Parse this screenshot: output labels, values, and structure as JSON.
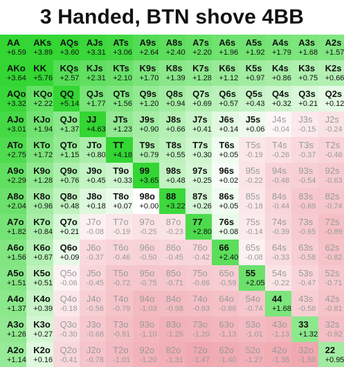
{
  "title": "3 Handed, BTN shove 4BB",
  "chart_data": {
    "type": "heatmap",
    "title": "3 Handed, BTN shove 4BB",
    "rows": [
      {
        "hands": [
          "AA",
          "AKs",
          "AQs",
          "AJs",
          "ATs",
          "A9s",
          "A8s",
          "A7s",
          "A6s",
          "A5s",
          "A4s",
          "A3s",
          "A2s"
        ],
        "values": [
          "+6.59",
          "+3.89",
          "+3.60",
          "+3.31",
          "+3.06",
          "+2.64",
          "+2.40",
          "+2.20",
          "+1.96",
          "+1.92",
          "+1.79",
          "+1.68",
          "+1.57"
        ]
      },
      {
        "hands": [
          "AKo",
          "KK",
          "KQs",
          "KJs",
          "KTs",
          "K9s",
          "K8s",
          "K7s",
          "K6s",
          "K5s",
          "K4s",
          "K3s",
          "K2s"
        ],
        "values": [
          "+3.64",
          "+5.76",
          "+2.57",
          "+2.31",
          "+2.10",
          "+1.70",
          "+1.39",
          "+1.28",
          "+1.12",
          "+0.97",
          "+0.86",
          "+0.75",
          "+0.66"
        ]
      },
      {
        "hands": [
          "AQo",
          "KQo",
          "QQ",
          "QJs",
          "QTs",
          "Q9s",
          "Q8s",
          "Q7s",
          "Q6s",
          "Q5s",
          "Q4s",
          "Q3s",
          "Q2s"
        ],
        "values": [
          "+3.32",
          "+2.22",
          "+5.14",
          "+1.77",
          "+1.56",
          "+1.20",
          "+0.94",
          "+0.69",
          "+0.57",
          "+0.43",
          "+0.32",
          "+0.21",
          "+0.12"
        ]
      },
      {
        "hands": [
          "AJo",
          "KJo",
          "QJo",
          "JJ",
          "JTs",
          "J9s",
          "J8s",
          "J7s",
          "J6s",
          "J5s",
          "J4s",
          "J3s",
          "J2s"
        ],
        "values": [
          "+3.01",
          "+1.94",
          "+1.37",
          "+4.63",
          "+1.23",
          "+0.90",
          "+0.66",
          "+0.41",
          "+0.14",
          "+0.06",
          "-0.04",
          "-0.15",
          "-0.24"
        ]
      },
      {
        "hands": [
          "ATo",
          "KTo",
          "QTo",
          "JTo",
          "TT",
          "T9s",
          "T8s",
          "T7s",
          "T6s",
          "T5s",
          "T4s",
          "T3s",
          "T2s"
        ],
        "values": [
          "+2.75",
          "+1.72",
          "+1.15",
          "+0.80",
          "+4.18",
          "+0.79",
          "+0.55",
          "+0.30",
          "+0.05",
          "-0.19",
          "-0.26",
          "-0.37",
          "-0.46"
        ]
      },
      {
        "hands": [
          "A9o",
          "K9o",
          "Q9o",
          "J9o",
          "T9o",
          "99",
          "98s",
          "97s",
          "96s",
          "95s",
          "94s",
          "93s",
          "92s"
        ],
        "values": [
          "+2.29",
          "+1.28",
          "+0.76",
          "+0.45",
          "+0.33",
          "+3.65",
          "+0.48",
          "+0.25",
          "+0.02",
          "-0.22",
          "-0.48",
          "-0.54",
          "-0.63"
        ]
      },
      {
        "hands": [
          "A8o",
          "K8o",
          "Q8o",
          "J8o",
          "T8o",
          "98o",
          "88",
          "87s",
          "86s",
          "85s",
          "84s",
          "83s",
          "82s"
        ],
        "values": [
          "+2.04",
          "+0.96",
          "+0.48",
          "+0.18",
          "+0.07",
          "+0.00",
          "+3.22",
          "+0.26",
          "+0.05",
          "-0.18",
          "-0.44",
          "-0.69",
          "-0.74"
        ]
      },
      {
        "hands": [
          "A7o",
          "K7o",
          "Q7o",
          "J7o",
          "T7o",
          "97o",
          "87o",
          "77",
          "76s",
          "75s",
          "74s",
          "73s",
          "72s"
        ],
        "values": [
          "+1.82",
          "+0.84",
          "+0.21",
          "-0.08",
          "-0.19",
          "-0.25",
          "-0.23",
          "+2.80",
          "+0.08",
          "-0.14",
          "-0.39",
          "-0.65",
          "-0.89"
        ]
      },
      {
        "hands": [
          "A6o",
          "K6o",
          "Q6o",
          "J6o",
          "T6o",
          "96o",
          "86o",
          "76o",
          "66",
          "65s",
          "64s",
          "63s",
          "62s"
        ],
        "values": [
          "+1.56",
          "+0.67",
          "+0.09",
          "-0.37",
          "-0.46",
          "-0.50",
          "-0.45",
          "-0.42",
          "+2.40",
          "-0.08",
          "-0.33",
          "-0.58",
          "-0.82"
        ]
      },
      {
        "hands": [
          "A5o",
          "K5o",
          "Q5o",
          "J5o",
          "T5o",
          "95o",
          "85o",
          "75o",
          "65o",
          "55",
          "54s",
          "53s",
          "52s"
        ],
        "values": [
          "+1.51",
          "+0.51",
          "-0.06",
          "-0.45",
          "-0.72",
          "-0.75",
          "-0.71",
          "-0.66",
          "-0.59",
          "+2.05",
          "-0.22",
          "-0.47",
          "-0.71"
        ]
      },
      {
        "hands": [
          "A4o",
          "K4o",
          "Q4o",
          "J4o",
          "T4o",
          "94o",
          "84o",
          "74o",
          "64o",
          "54o",
          "44",
          "43s",
          "42s"
        ],
        "values": [
          "+1.37",
          "+0.39",
          "-0.18",
          "-0.56",
          "-0.79",
          "-1.03",
          "-0.98",
          "-0.93",
          "-0.86",
          "-0.74",
          "+1.68",
          "-0.58",
          "-0.81"
        ]
      },
      {
        "hands": [
          "A3o",
          "K3o",
          "Q3o",
          "J3o",
          "T3o",
          "93o",
          "83o",
          "73o",
          "63o",
          "53o",
          "43o",
          "33",
          "32s"
        ],
        "values": [
          "+1.26",
          "+0.27",
          "-0.30",
          "-0.68",
          "-0.91",
          "-1.10",
          "-1.25",
          "-1.20",
          "-1.13",
          "-1.01",
          "-1.13",
          "+1.32",
          "-0.92"
        ]
      },
      {
        "hands": [
          "A2o",
          "K2o",
          "Q2o",
          "J2o",
          "T2o",
          "92o",
          "82o",
          "72o",
          "62o",
          "52o",
          "42o",
          "32o",
          "22"
        ],
        "values": [
          "+1.14",
          "+0.16",
          "-0.41",
          "-0.78",
          "-1.01",
          "-1.20",
          "-1.31",
          "-1.47",
          "-1.40",
          "-1.27",
          "-1.38",
          "-1.50",
          "+0.95"
        ]
      }
    ],
    "colors": {
      "strong_positive": "#33d633",
      "neutral": "#ffffff",
      "negative": "#f0a8b0"
    }
  }
}
